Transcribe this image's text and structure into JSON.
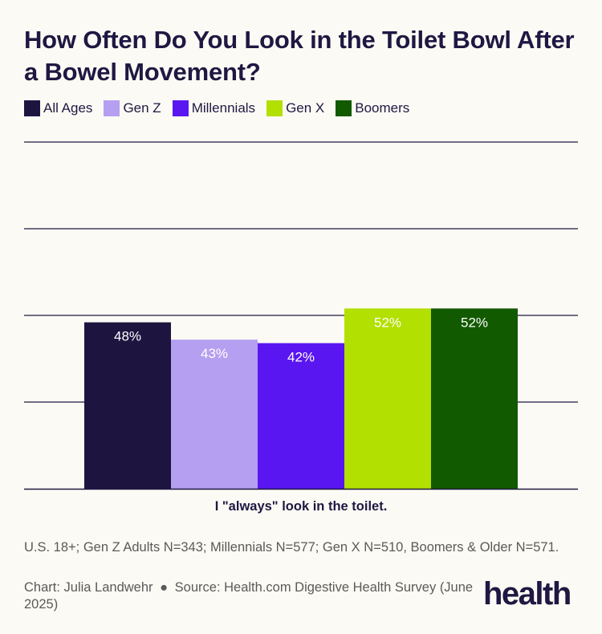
{
  "title": "How Often Do You Look in the Toilet Bowl After a Bowel Movement?",
  "logo_text": "health",
  "footnote": "U.S. 18+; Gen Z Adults N=343; Millennials N=577; Gen X N=510, Boomers & Older N=571.",
  "credit": {
    "chart_by": "Chart: Julia Landwehr",
    "separator": "●",
    "source": "Source: Health.com Digestive Health Survey (June 2025)"
  },
  "chart_data": {
    "type": "bar",
    "categories": [
      "I \"always\" look in the toilet."
    ],
    "series": [
      {
        "name": "All Ages",
        "values": [
          48
        ],
        "label": "48%",
        "color": "#1e1440"
      },
      {
        "name": "Gen Z",
        "values": [
          43
        ],
        "label": "43%",
        "color": "#b59ff0"
      },
      {
        "name": "Millennials",
        "values": [
          42
        ],
        "label": "42%",
        "color": "#5a16f0"
      },
      {
        "name": "Gen X",
        "values": [
          52
        ],
        "label": "52%",
        "color": "#b2e000"
      },
      {
        "name": "Boomers",
        "values": [
          52
        ],
        "label": "52%",
        "color": "#125a00"
      }
    ],
    "ylim": [
      0,
      100
    ],
    "grid": true,
    "legend_position": "top-left",
    "unit": "%"
  }
}
